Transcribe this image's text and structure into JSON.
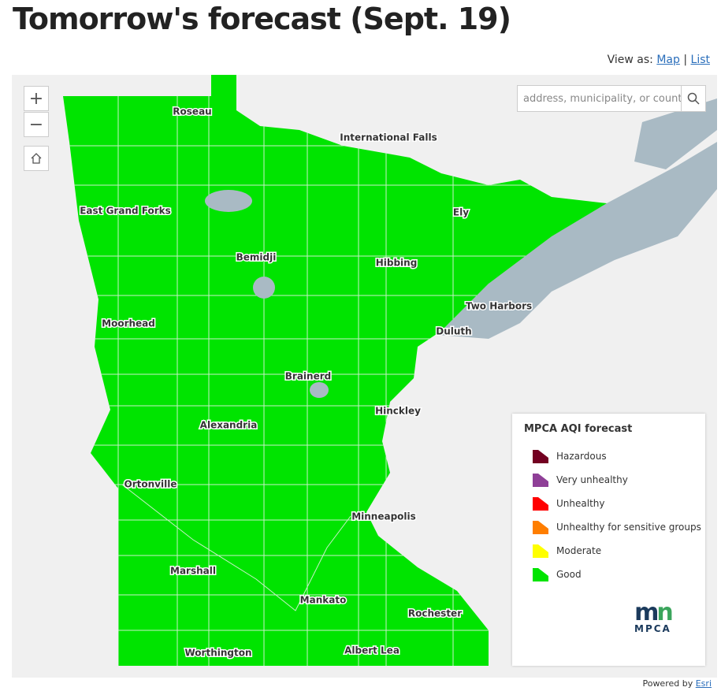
{
  "header": {
    "title": "Tomorrow's forecast (Sept. 19)"
  },
  "view_as": {
    "label": "View as:",
    "options": [
      "Map",
      "List"
    ],
    "separator": "|"
  },
  "map": {
    "search_placeholder": "address, municipality, or count",
    "cities": [
      "Roseau",
      "International Falls",
      "East Grand Forks",
      "Ely",
      "Bemidji",
      "Hibbing",
      "Two Harbors",
      "Moorhead",
      "Duluth",
      "Brainerd",
      "Hinckley",
      "Alexandria",
      "Ortonville",
      "Minneapolis",
      "Marshall",
      "Mankato",
      "Rochester",
      "Worthington",
      "Albert Lea"
    ]
  },
  "legend": {
    "title": "MPCA AQI forecast",
    "items": [
      {
        "label": "Hazardous",
        "color": "#730021"
      },
      {
        "label": "Very unhealthy",
        "color": "#8f3f97"
      },
      {
        "label": "Unhealthy",
        "color": "#ff0000"
      },
      {
        "label": "Unhealthy for sensitive groups",
        "color": "#ff7e00"
      },
      {
        "label": "Moderate",
        "color": "#ffff00"
      },
      {
        "label": "Good",
        "color": "#00e400"
      }
    ],
    "logo": "MPCA"
  },
  "footer": {
    "powered_by": "Powered by",
    "provider": "Esri"
  }
}
